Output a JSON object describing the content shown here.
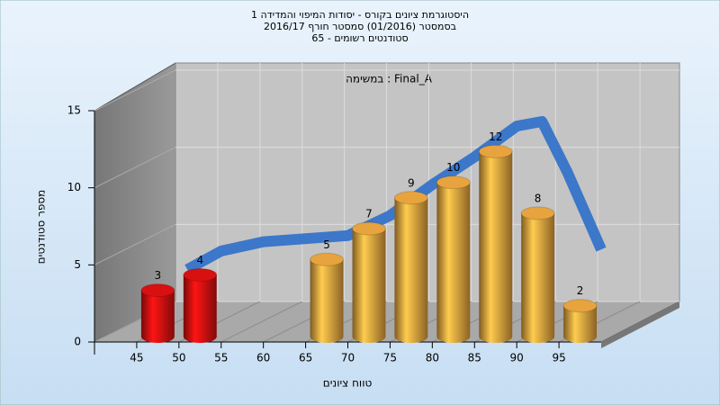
{
  "chart_data": {
    "type": "histogram",
    "title": [
      "היסטוגרמת ציונים בקורס - יסודות המיפוי והמדידה 1",
      "בסמסטר  (01/2016)  סמסטר חורף 2016/17",
      "סטודנטים רשומים - 65"
    ],
    "subtitle": "במשימה : Final_A",
    "xlabel": "טווח ציונים",
    "ylabel": "מספר סטודנטים",
    "bins": [
      45,
      50,
      55,
      60,
      65,
      70,
      75,
      80,
      85,
      90,
      95,
      100
    ],
    "values": [
      3,
      4,
      0,
      0,
      5,
      7,
      9,
      10,
      12,
      8,
      2
    ],
    "colors": [
      "#d81010",
      "#d81010",
      "#e7a33e",
      "#e7a33e",
      "#e7a33e",
      "#e7a33e",
      "#e7a33e",
      "#e7a33e",
      "#e7a33e",
      "#e7a33e",
      "#e7a33e"
    ],
    "trend": {
      "x": [
        51,
        55,
        60,
        65,
        70,
        75,
        80,
        85,
        90,
        93,
        96,
        100
      ],
      "values": [
        4.7,
        5.9,
        6.5,
        6.7,
        6.9,
        8.2,
        10.2,
        12,
        14,
        14.3,
        11,
        6
      ],
      "color": "#3573c9"
    },
    "xlim": [
      40,
      100
    ],
    "xticks": [
      45,
      50,
      55,
      60,
      65,
      70,
      75,
      80,
      85,
      90,
      95
    ],
    "ylim": [
      0,
      15
    ],
    "yticks": [
      0,
      5,
      10,
      15
    ],
    "grid": true
  }
}
